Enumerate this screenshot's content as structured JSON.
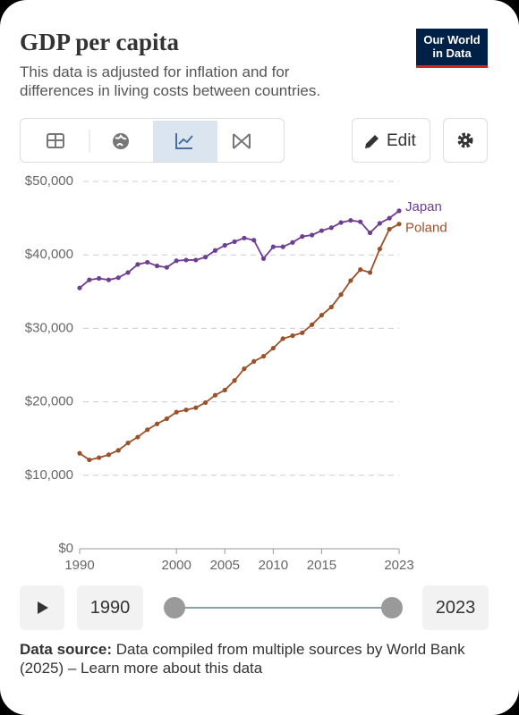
{
  "chart_data": {
    "type": "line",
    "title": "GDP per capita",
    "subtitle": "This data is adjusted for inflation and for differences in living costs between countries.",
    "x": [
      1990,
      1991,
      1992,
      1993,
      1994,
      1995,
      1996,
      1997,
      1998,
      1999,
      2000,
      2001,
      2002,
      2003,
      2004,
      2005,
      2006,
      2007,
      2008,
      2009,
      2010,
      2011,
      2012,
      2013,
      2014,
      2015,
      2016,
      2017,
      2018,
      2019,
      2020,
      2021,
      2022,
      2023
    ],
    "series": [
      {
        "name": "Japan",
        "color": "#6d3e91",
        "values": [
          35500,
          36600,
          36800,
          36600,
          36900,
          37600,
          38700,
          39000,
          38500,
          38300,
          39200,
          39300,
          39300,
          39700,
          40600,
          41300,
          41800,
          42300,
          42000,
          39500,
          41100,
          41100,
          41700,
          42500,
          42700,
          43300,
          43700,
          44400,
          44700,
          44500,
          43000,
          44300,
          45000,
          46000
        ]
      },
      {
        "name": "Poland",
        "color": "#9a5129",
        "values": [
          13000,
          12100,
          12400,
          12800,
          13400,
          14400,
          15200,
          16200,
          17000,
          17700,
          18600,
          18900,
          19200,
          19900,
          20900,
          21600,
          22900,
          24500,
          25500,
          26200,
          27300,
          28600,
          29000,
          29400,
          30500,
          31800,
          32900,
          34600,
          36500,
          38000,
          37600,
          40800,
          43500,
          44200
        ]
      }
    ],
    "xlim": [
      1990,
      2023
    ],
    "xticks": [
      1990,
      2000,
      2005,
      2010,
      2015,
      2023
    ],
    "ylim": [
      0,
      50000
    ],
    "yticks": [
      {
        "value": 0,
        "label": "$0"
      },
      {
        "value": 10000,
        "label": "$10,000"
      },
      {
        "value": 20000,
        "label": "$20,000"
      },
      {
        "value": 30000,
        "label": "$30,000"
      },
      {
        "value": 40000,
        "label": "$40,000"
      },
      {
        "value": 50000,
        "label": "$50,000"
      }
    ],
    "grid": true
  },
  "logo": [
    "Our World",
    "in Data"
  ],
  "buttons": {
    "edit": "Edit"
  },
  "timeline": {
    "start": 1990,
    "end": 2023
  },
  "source": {
    "label": "Data source:",
    "text": "Data compiled from multiple sources by World Bank (2025) – Learn more about this data"
  }
}
